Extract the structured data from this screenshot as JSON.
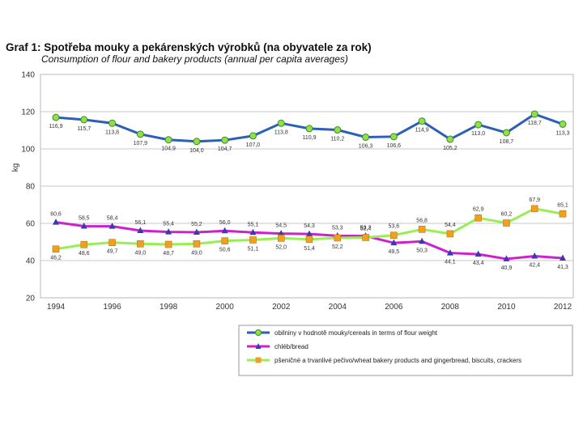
{
  "title": "Graf 1: Spotřeba mouky a pekárenských výrobků (na obyvatele za rok)",
  "subtitle": "Consumption of flour and bakery products (annual per capita averages)",
  "chart_data": {
    "type": "line",
    "title": "Graf 1: Spotřeba mouky a pekárenských výrobků (na obyvatele za rok)",
    "subtitle": "Consumption of flour and bakery products (annual per capita averages)",
    "xlabel": "",
    "ylabel": "kg",
    "ylim": [
      20,
      140
    ],
    "yticks": [
      "140",
      "120",
      "100",
      "80",
      "60",
      "40",
      "20"
    ],
    "grid": true,
    "legend_position": "bottom-right",
    "x": [
      1994,
      1995,
      1996,
      1997,
      1998,
      1999,
      2000,
      2001,
      2002,
      2003,
      2004,
      2005,
      2006,
      2007,
      2008,
      2009,
      2010,
      2011,
      2012
    ],
    "xtick_labels": [
      "1994",
      "1996",
      "1998",
      "2000",
      "2002",
      "2004",
      "2006",
      "2008",
      "2010",
      "2012"
    ],
    "series": [
      {
        "name": "obilniny v hodnotě mouky/cereals in terms of flour weight",
        "color": "#2c5fb8",
        "fill": "#90e04a",
        "marker": "circle",
        "values": [
          116.9,
          115.7,
          113.8,
          107.9,
          104.9,
          104.0,
          104.7,
          107.0,
          113.8,
          110.9,
          110.2,
          106.3,
          106.6,
          114.9,
          105.2,
          113.0,
          108.7,
          118.7,
          113.3
        ],
        "labels": [
          "116,9",
          "115,7",
          "113,8",
          "107,9",
          "104,9",
          "104,0",
          "104,7",
          "107,0",
          "113,8",
          "110,9",
          "110,2",
          "106,3",
          "106,6",
          "114,9",
          "105,2",
          "113,0",
          "108,7",
          "118,7",
          "113,3"
        ]
      },
      {
        "name": "chléb/bread",
        "color": "#cc22cc",
        "fill": "#3a3ab0",
        "marker": "triangle",
        "values": [
          60.6,
          58.5,
          58.4,
          56.1,
          55.4,
          55.2,
          56.0,
          55.1,
          54.5,
          54.3,
          53.3,
          53.2,
          49.5,
          50.3,
          44.1,
          43.4,
          40.9,
          42.4,
          41.3
        ],
        "labels": [
          "60,6",
          "58,5",
          "58,4",
          "56,1",
          "55,4",
          "55,2",
          "56,0",
          "55,1",
          "54,5",
          "54,3",
          "53,3",
          "53,2",
          "49,5",
          "50,3",
          "44,1",
          "43,4",
          "40,9",
          "42,4",
          "41,3"
        ]
      },
      {
        "name": "pšeničné a trvanlivé pečivo/wheat bakery products and gingerbread, biscuits, crackers",
        "color": "#99ee55",
        "fill": "#f0a020",
        "marker": "square",
        "values": [
          46.2,
          48.6,
          49.7,
          49.0,
          48.7,
          49.0,
          50.6,
          51.1,
          52.0,
          51.4,
          52.2,
          52.4,
          53.6,
          56.8,
          54.4,
          62.9,
          60.2,
          67.9,
          65.1
        ],
        "labels": [
          "46,2",
          "48,6",
          "49,7",
          "49,0",
          "48,7",
          "49,0",
          "50,6",
          "51,1",
          "52,0",
          "51,4",
          "52,2",
          "52,4",
          "53,6",
          "56,8",
          "54,4",
          "62,9",
          "60,2",
          "67,9",
          "65,1"
        ]
      }
    ]
  }
}
